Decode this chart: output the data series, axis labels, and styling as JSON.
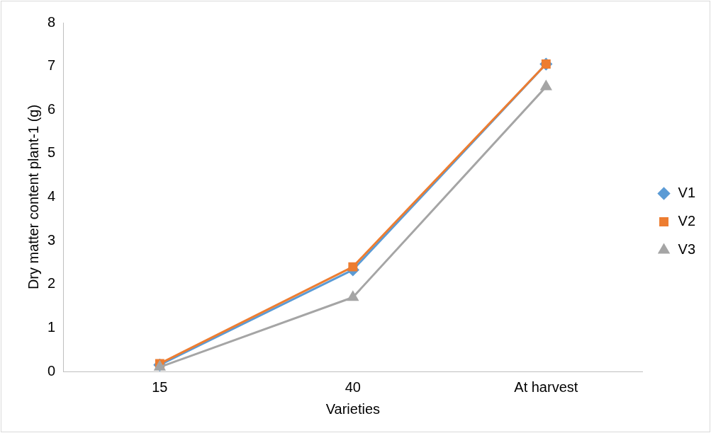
{
  "chart_data": {
    "type": "line",
    "xlabel": "Varieties",
    "ylabel": "Dry matter content plant-1 (g)",
    "categories": [
      "15",
      "40",
      "At harvest"
    ],
    "series": [
      {
        "name": "V1",
        "color": "#5b9bd5",
        "marker": "diamond",
        "values": [
          0.15,
          2.33,
          7.05
        ]
      },
      {
        "name": "V2",
        "color": "#ed7d31",
        "marker": "square",
        "values": [
          0.18,
          2.4,
          7.05
        ]
      },
      {
        "name": "V3",
        "color": "#a5a5a5",
        "marker": "triangle",
        "values": [
          0.1,
          1.7,
          6.53
        ]
      }
    ],
    "ylim": [
      0,
      8
    ],
    "yticks": [
      0,
      1,
      2,
      3,
      4,
      5,
      6,
      7,
      8
    ],
    "grid": false,
    "legend": "right"
  }
}
